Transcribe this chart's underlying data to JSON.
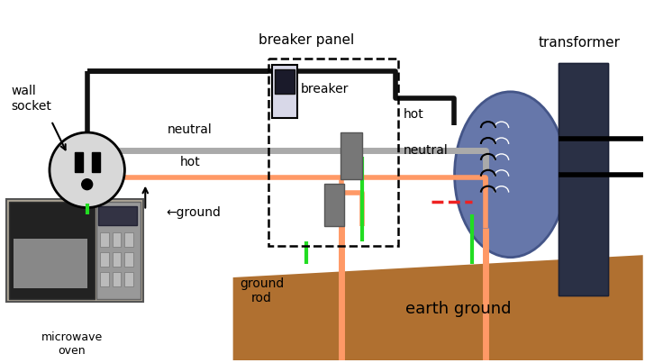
{
  "bg_color": "#ffffff",
  "labels": {
    "wall_socket": "wall\nsocket",
    "neutral": "neutral",
    "hot": "hot",
    "ground": "←ground",
    "breaker_panel": "breaker panel",
    "breaker": "breaker",
    "hot_right": "hot",
    "neutral_right": "neutral",
    "transformer": "transformer",
    "microwave": "microwave\noven",
    "ground_rod": "ground\nrod",
    "earth_ground": "earth ground"
  },
  "colors": {
    "neutral": "#aaaaaa",
    "hot": "#ff9966",
    "ground_wire": "#22dd22",
    "black_wire": "#111111",
    "earth": "#b07030",
    "red_dash": "#ee2222",
    "gray_bar": "#777777",
    "white": "#ffffff",
    "socket_fill": "#e0e0e0",
    "transformer_blue": "#6677aa",
    "transformer_dark": "#2a3a55",
    "panel_box": "#111111"
  },
  "wire_lw": {
    "neutral": 5,
    "hot": 4,
    "black": 4,
    "green": 3
  }
}
